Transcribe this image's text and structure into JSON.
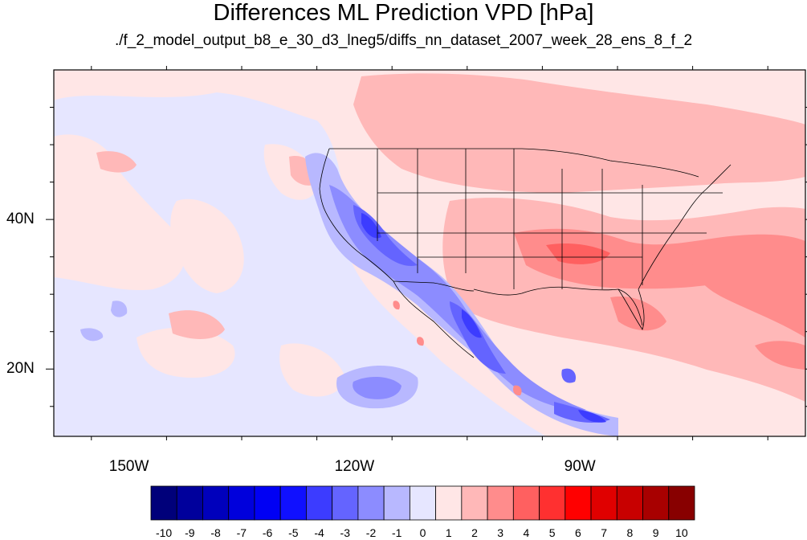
{
  "title": "Differences ML Prediction VPD [hPa]",
  "subtitle": "./f_2_model_output_b8_e_30_d3_lneg5/diffs_nn_dataset_2007_week_28_ens_8_f_2",
  "lat_labels": [
    "40N",
    "20N"
  ],
  "lon_labels": [
    "150W",
    "120W",
    "90W"
  ],
  "colorbar": {
    "labels": [
      "-10",
      "-9",
      "-8",
      "-7",
      "-6",
      "-5",
      "-4",
      "-3",
      "-2",
      "-1",
      "0",
      "1",
      "2",
      "3",
      "4",
      "5",
      "6",
      "7",
      "8",
      "9",
      "10"
    ],
    "colors": [
      "#00007a",
      "#00009c",
      "#0000bc",
      "#0000dc",
      "#0000f4",
      "#1010ff",
      "#3c3cff",
      "#6464ff",
      "#8c8cff",
      "#b8b8ff",
      "#e6e6ff",
      "#ffe6e6",
      "#ffb8b8",
      "#ff8c8c",
      "#ff6060",
      "#ff3030",
      "#ff0000",
      "#e00000",
      "#c80000",
      "#a80000",
      "#880000"
    ]
  },
  "map": {
    "lon_range": [
      -160,
      -60
    ],
    "lat_range": [
      11,
      60
    ],
    "lat_ticks": [
      40,
      20
    ],
    "lon_ticks": [
      -150,
      -120,
      -90
    ],
    "background_color": "#ffe6e6"
  }
}
